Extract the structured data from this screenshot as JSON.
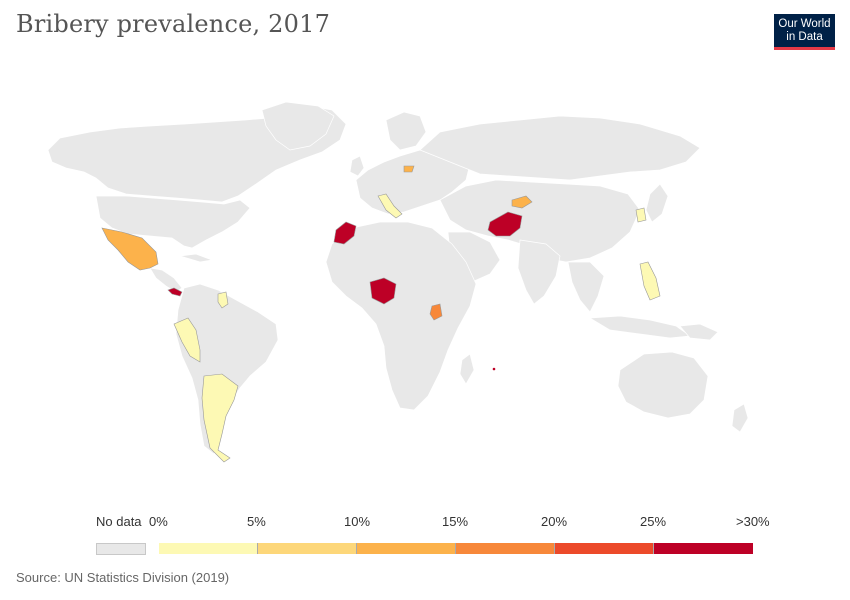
{
  "title": "Bribery prevalence, 2017",
  "logo": {
    "line1": "Our World",
    "line2": "in Data",
    "bg": "#002147",
    "accent": "#e63946"
  },
  "legend": {
    "no_data_label": "No data",
    "no_data_color": "#e8e8e8",
    "ticks": [
      "0%",
      "5%",
      "10%",
      "15%",
      "20%",
      "25%",
      ">30%"
    ],
    "bins": [
      {
        "range": "0-5",
        "color": "#fdf9b4"
      },
      {
        "range": "5-10",
        "color": "#fdd77a"
      },
      {
        "range": "10-15",
        "color": "#fcb24b"
      },
      {
        "range": "15-20",
        "color": "#f7883a"
      },
      {
        "range": "20-25",
        "color": "#ec4a2a"
      },
      {
        "range": "25-30+",
        "color": "#bd0026"
      }
    ]
  },
  "countries_with_data": [
    {
      "name": "Mexico",
      "bin": 2
    },
    {
      "name": "Panama",
      "bin": 5
    },
    {
      "name": "Guyana",
      "bin": 0
    },
    {
      "name": "Peru",
      "bin": 0
    },
    {
      "name": "Argentina",
      "bin": 0
    },
    {
      "name": "Italy",
      "bin": 0
    },
    {
      "name": "Lithuania",
      "bin": 2
    },
    {
      "name": "Morocco",
      "bin": 5
    },
    {
      "name": "Nigeria",
      "bin": 5
    },
    {
      "name": "Uganda",
      "bin": 3
    },
    {
      "name": "Afghanistan",
      "bin": 5
    },
    {
      "name": "Kyrgyzstan",
      "bin": 2
    },
    {
      "name": "South Korea",
      "bin": 0
    },
    {
      "name": "Philippines",
      "bin": 0
    },
    {
      "name": "Mauritius",
      "bin": 5
    }
  ],
  "source": "Source: UN Statistics Division (2019)"
}
